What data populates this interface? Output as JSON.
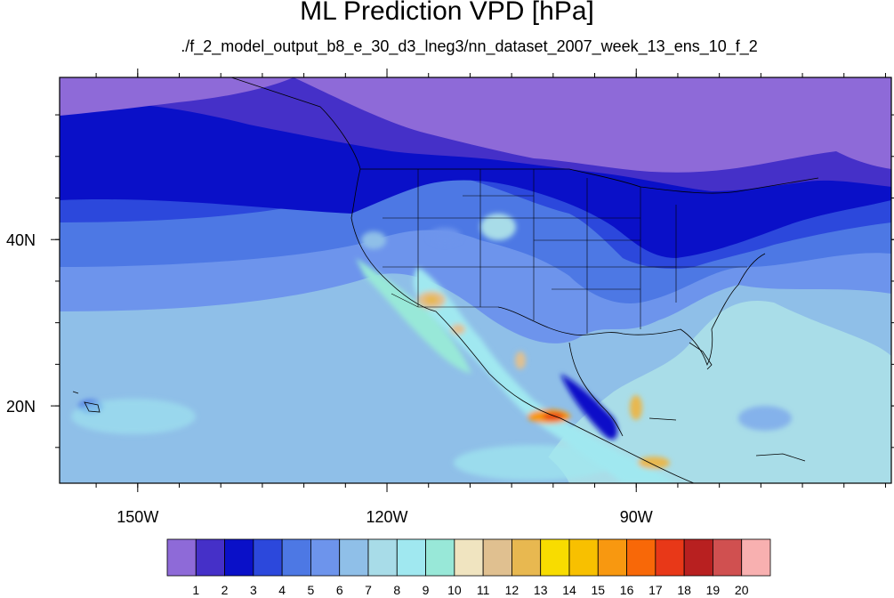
{
  "title": "ML Prediction VPD [hPa]",
  "subtitle": "./f_2_model_output_b8_e_30_d3_lneg3/nn_dataset_2007_week_13_ens_10_f_2",
  "map": {
    "lon_ticks": [
      {
        "lon": -150,
        "label": "150W"
      },
      {
        "lon": -120,
        "label": "120W"
      },
      {
        "lon": -90,
        "label": "90W"
      }
    ],
    "lat_ticks": [
      {
        "lat": 40,
        "label": "40N"
      },
      {
        "lat": 20,
        "label": "20N"
      }
    ]
  },
  "colorbar": {
    "labels": [
      "1",
      "2",
      "3",
      "4",
      "5",
      "6",
      "7",
      "8",
      "9",
      "10",
      "11",
      "12",
      "13",
      "14",
      "15",
      "16",
      "17",
      "18",
      "19",
      "20"
    ],
    "colors": [
      "#8e6ad8",
      "#4530c8",
      "#0a10c8",
      "#2c48dc",
      "#4d78e4",
      "#6d94ec",
      "#8fbfe8",
      "#a8dce8",
      "#a0e8f0",
      "#98e8d8",
      "#f0e4c0",
      "#e0c090",
      "#e8b850",
      "#f8dc00",
      "#f8c000",
      "#f89810",
      "#f86808",
      "#e83818",
      "#b82020",
      "#d05050",
      "#f8b0b0"
    ]
  },
  "colors": {
    "ocean_south": "#a9dde8",
    "ocean_mid": "#8fbfe8",
    "land_mid": "#4d78e4",
    "north_dark": "#0a10c8",
    "north_top": "#8e6ad8"
  }
}
